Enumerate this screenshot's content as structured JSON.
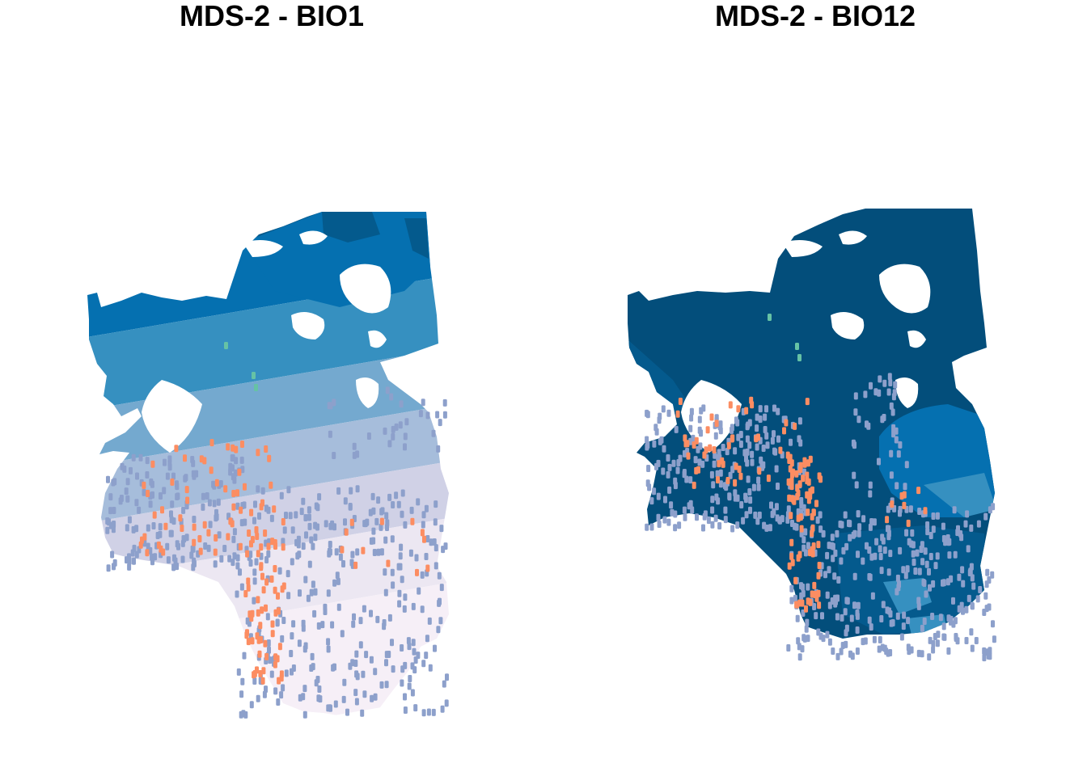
{
  "panels": [
    {
      "title": "MDS-2 - BIO1",
      "palette": [
        "#045a8d",
        "#0570b0",
        "#3690c0",
        "#74a9cf",
        "#a6bddb",
        "#d0d1e6",
        "#ece7f2",
        "#f6eff7"
      ]
    },
    {
      "title": "MDS-2 - BIO12",
      "palette": [
        "#034e7b",
        "#045a8d",
        "#0570b0",
        "#3690c0",
        "#74a9cf"
      ]
    }
  ],
  "point_colors": {
    "group_a": "#8da0cb",
    "group_b": "#fc8d62",
    "group_c": "#66c2a5"
  }
}
